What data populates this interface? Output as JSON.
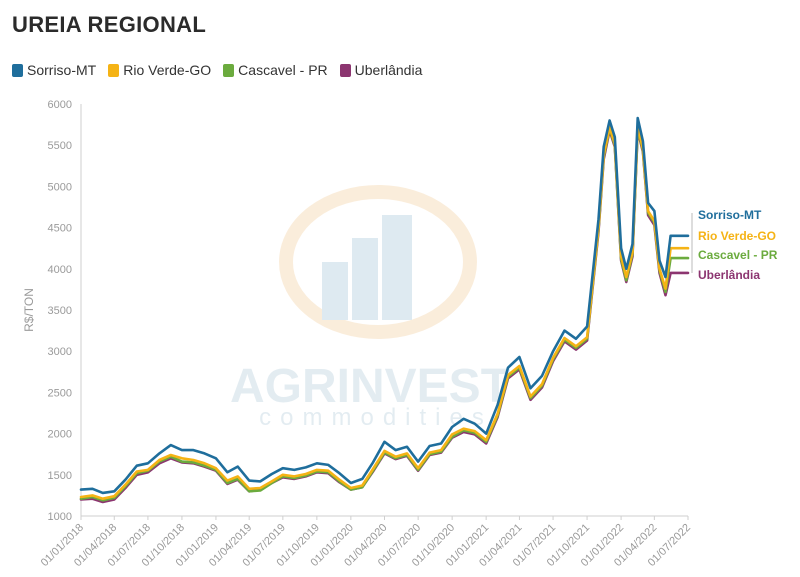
{
  "colors": {
    "sorriso": "#1f6e9c",
    "rio_verde": "#f5b315",
    "cascavel": "#6bab3e",
    "uberlandia": "#8c3570",
    "tick": "#9a9a9a",
    "axis": "#cfcfcf"
  },
  "watermark": {
    "brand": "AGRINVEST",
    "sub": "commodities"
  },
  "chart_data": {
    "type": "line",
    "title": "UREIA REGIONAL",
    "ylabel": "R$/TON",
    "xlabel": "",
    "ylim": [
      1000,
      6000
    ],
    "xlim": [
      "2018-01-01",
      "2022-07-01"
    ],
    "y_ticks": [
      "1000",
      "1500",
      "2000",
      "2500",
      "3000",
      "3500",
      "4000",
      "4500",
      "5000",
      "5500",
      "6000"
    ],
    "x_ticks": [
      "01/01/2018",
      "01/04/2018",
      "01/07/2018",
      "01/10/2018",
      "01/01/2019",
      "01/04/2019",
      "01/07/2019",
      "01/10/2019",
      "01/01/2020",
      "01/04/2020",
      "01/07/2020",
      "01/10/2020",
      "01/01/2021",
      "01/04/2021",
      "01/07/2021",
      "01/10/2021",
      "01/01/2022",
      "01/04/2022",
      "01/07/2022"
    ],
    "grid": false,
    "legend_position": "top-left",
    "x": [
      "2018-01-01",
      "2018-02-01",
      "2018-03-01",
      "2018-04-01",
      "2018-05-01",
      "2018-06-01",
      "2018-07-01",
      "2018-08-01",
      "2018-09-01",
      "2018-10-01",
      "2018-11-01",
      "2018-12-01",
      "2019-01-01",
      "2019-02-01",
      "2019-03-01",
      "2019-04-01",
      "2019-05-01",
      "2019-06-01",
      "2019-07-01",
      "2019-08-01",
      "2019-09-01",
      "2019-10-01",
      "2019-11-01",
      "2019-12-01",
      "2020-01-01",
      "2020-02-01",
      "2020-03-01",
      "2020-04-01",
      "2020-05-01",
      "2020-06-01",
      "2020-07-01",
      "2020-08-01",
      "2020-09-01",
      "2020-10-01",
      "2020-11-01",
      "2020-12-01",
      "2021-01-01",
      "2021-02-01",
      "2021-03-01",
      "2021-04-01",
      "2021-05-01",
      "2021-06-01",
      "2021-07-01",
      "2021-08-01",
      "2021-09-01",
      "2021-10-01",
      "2021-11-01",
      "2021-11-15",
      "2021-12-01",
      "2021-12-15",
      "2022-01-01",
      "2022-01-15",
      "2022-02-01",
      "2022-02-15",
      "2022-03-01",
      "2022-03-15",
      "2022-04-01",
      "2022-04-15",
      "2022-05-01",
      "2022-05-15",
      "2022-06-01",
      "2022-06-15",
      "2022-07-01"
    ],
    "series": [
      {
        "name": "Sorriso-MT",
        "color_key": "sorriso",
        "values": [
          1320,
          1330,
          1280,
          1300,
          1440,
          1610,
          1640,
          1760,
          1860,
          1800,
          1800,
          1760,
          1700,
          1530,
          1600,
          1430,
          1420,
          1510,
          1580,
          1560,
          1590,
          1640,
          1620,
          1520,
          1400,
          1450,
          1650,
          1900,
          1800,
          1840,
          1660,
          1850,
          1880,
          2080,
          2180,
          2120,
          2000,
          2350,
          2800,
          2930,
          2550,
          2700,
          3000,
          3250,
          3150,
          3300,
          4600,
          5480,
          5800,
          5600,
          4250,
          4000,
          4300,
          5830,
          5550,
          4800,
          4700,
          4100,
          3900,
          4400,
          4400,
          4400,
          4400
        ]
      },
      {
        "name": "Rio Verde-GO",
        "color_key": "rio_verde",
        "values": [
          1230,
          1250,
          1210,
          1240,
          1380,
          1540,
          1560,
          1680,
          1740,
          1700,
          1680,
          1640,
          1580,
          1430,
          1480,
          1330,
          1340,
          1420,
          1500,
          1480,
          1510,
          1560,
          1550,
          1440,
          1340,
          1370,
          1570,
          1790,
          1720,
          1760,
          1580,
          1770,
          1800,
          1990,
          2060,
          2030,
          1920,
          2240,
          2710,
          2820,
          2450,
          2600,
          2920,
          3160,
          3060,
          3170,
          4500,
          5380,
          5720,
          5520,
          4150,
          3900,
          4200,
          5730,
          5460,
          4700,
          4580,
          4000,
          3760,
          4250,
          4250,
          4250,
          4250
        ]
      },
      {
        "name": "Cascavel - PR",
        "color_key": "cascavel",
        "values": [
          1210,
          1230,
          1190,
          1220,
          1360,
          1520,
          1550,
          1660,
          1720,
          1660,
          1650,
          1610,
          1560,
          1400,
          1450,
          1300,
          1310,
          1400,
          1480,
          1460,
          1490,
          1540,
          1530,
          1420,
          1320,
          1350,
          1550,
          1770,
          1700,
          1740,
          1560,
          1750,
          1780,
          1960,
          2040,
          2010,
          1900,
          2220,
          2690,
          2800,
          2430,
          2580,
          2900,
          3140,
          3040,
          3150,
          4480,
          5360,
          5700,
          5500,
          4120,
          3860,
          4180,
          5700,
          5440,
          4680,
          4560,
          3980,
          3720,
          4130,
          4130,
          4130,
          4130
        ]
      },
      {
        "name": "Uberlândia",
        "color_key": "uberlandia",
        "values": [
          1200,
          1210,
          1170,
          1200,
          1340,
          1500,
          1530,
          1640,
          1700,
          1650,
          1640,
          1600,
          1550,
          1390,
          1440,
          1300,
          1320,
          1400,
          1470,
          1450,
          1480,
          1530,
          1520,
          1410,
          1320,
          1350,
          1540,
          1760,
          1690,
          1730,
          1550,
          1740,
          1770,
          1950,
          2020,
          1990,
          1880,
          2200,
          2670,
          2780,
          2410,
          2560,
          2880,
          3120,
          3020,
          3130,
          4450,
          5330,
          5680,
          5480,
          4100,
          3840,
          4150,
          5680,
          5420,
          4650,
          4530,
          3950,
          3680,
          3950,
          3950,
          3950,
          3950
        ]
      }
    ],
    "end_labels": [
      "Sorriso-MT",
      "Rio Verde-GO",
      "Cascavel - PR",
      "Uberlândia"
    ]
  }
}
